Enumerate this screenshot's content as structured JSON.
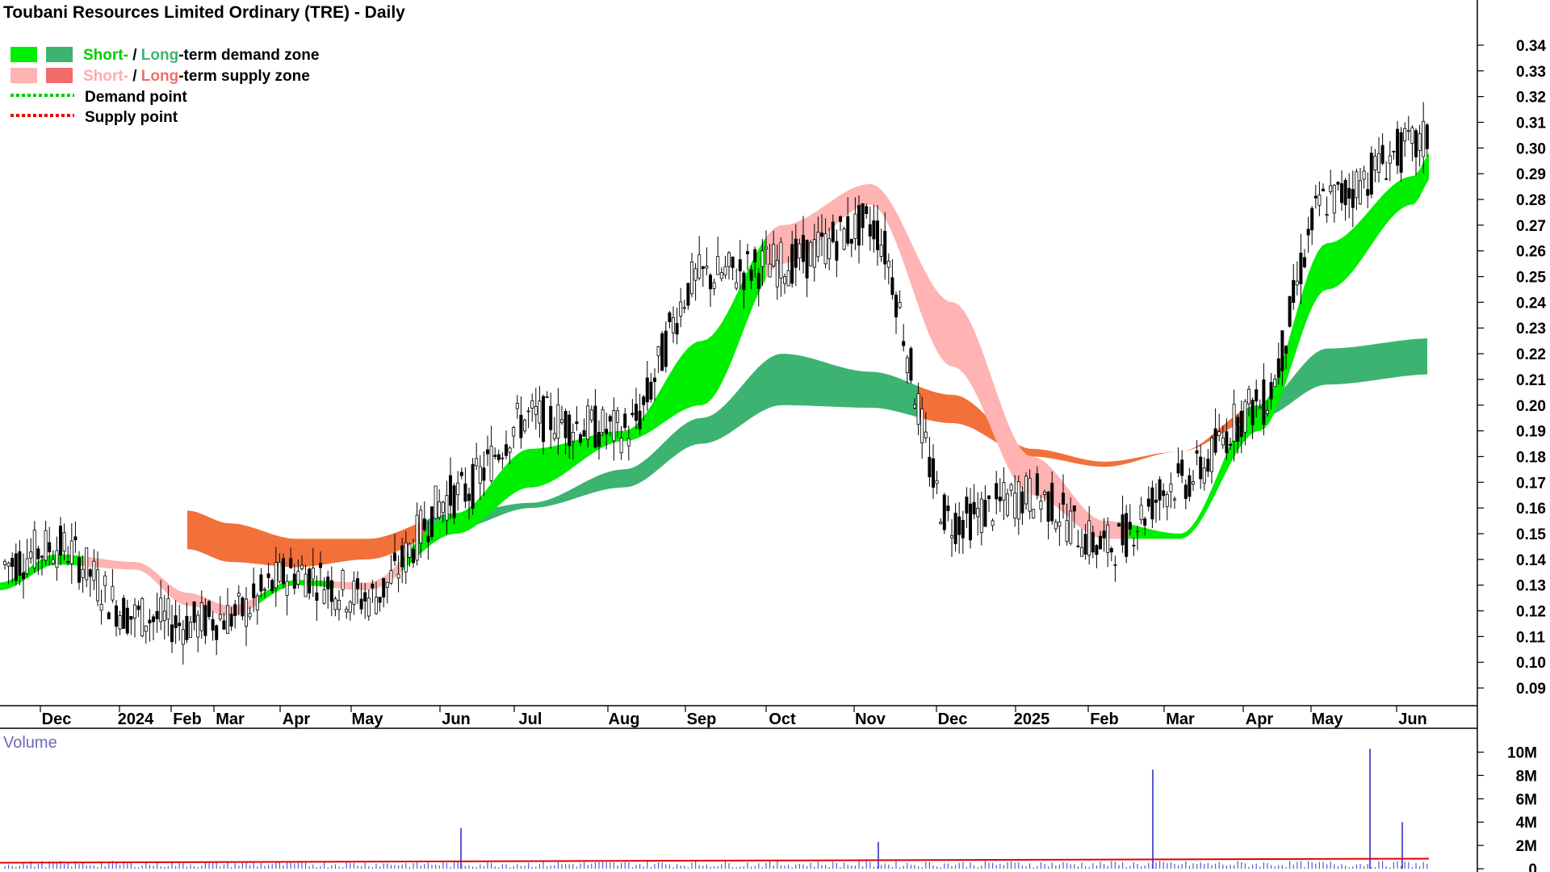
{
  "title": "Toubani Resources Limited Ordinary (TRE) - Daily",
  "colors": {
    "short_demand": "#00ee00",
    "long_demand": "#3cb371",
    "short_supply": "#ffb3b3",
    "long_supply": "#f2713a",
    "demand_point": "#00cc00",
    "supply_point": "#ee0000",
    "volume_bar": "#5a5ad0",
    "volume_avg": "#e00000"
  },
  "legend": {
    "demand_short": "Short-",
    "demand_sep": " / ",
    "demand_long": "Long",
    "demand_rest": "-term demand zone",
    "supply_short": "Short-",
    "supply_sep": " / ",
    "supply_long": "Long",
    "supply_rest": "-term supply zone",
    "demand_point": "Demand point",
    "supply_point": "Supply point"
  },
  "volume_label": "Volume",
  "chart_data": [
    {
      "type": "candlestick",
      "title": "Toubani Resources Limited Ordinary (TRE) - Daily",
      "x_tick_labels": [
        "Dec",
        "2024",
        "Feb",
        "Mar",
        "Apr",
        "May",
        "Jun",
        "Jul",
        "Aug",
        "Sep",
        "Oct",
        "Nov",
        "Dec",
        "2025",
        "Feb",
        "Mar",
        "Apr",
        "May",
        "Jun"
      ],
      "y_tick_labels": [
        "0.34",
        "0.33",
        "0.32",
        "0.31",
        "0.30",
        "0.29",
        "0.28",
        "0.27",
        "0.26",
        "0.25",
        "0.24",
        "0.23",
        "0.22",
        "0.21",
        "0.20",
        "0.19",
        "0.18",
        "0.17",
        "0.16",
        "0.15",
        "0.14",
        "0.13",
        "0.12",
        "0.11",
        "0.10",
        "0.09"
      ],
      "ylim": [
        0.085,
        0.345
      ],
      "grid": false,
      "legend_position": "top-left",
      "price_path": [
        [
          "Dec",
          0.145
        ],
        [
          "2024",
          0.118
        ],
        [
          "Feb",
          0.115
        ],
        [
          "Mar",
          0.118
        ],
        [
          "Apr",
          0.135
        ],
        [
          "May",
          0.125
        ],
        [
          "Jun",
          0.165
        ],
        [
          "Jul",
          0.195
        ],
        [
          "Aug",
          0.19
        ],
        [
          "Sep",
          0.25
        ],
        [
          "Oct",
          0.255
        ],
        [
          "Nov",
          0.27
        ],
        [
          "Dec",
          0.155
        ],
        [
          "2025",
          0.165
        ],
        [
          "Feb",
          0.145
        ],
        [
          "Mar",
          0.17
        ],
        [
          "Apr",
          0.2
        ],
        [
          "May",
          0.28
        ],
        [
          "Jun",
          0.3
        ]
      ],
      "short_term_zone": [
        [
          "Dec",
          0.138,
          0.142
        ],
        [
          "2024",
          0.136,
          0.139
        ],
        [
          "Feb",
          0.122,
          0.127
        ],
        [
          "Mar",
          0.118,
          0.122
        ],
        [
          "Apr",
          0.13,
          0.132
        ],
        [
          "May",
          0.128,
          0.131
        ],
        [
          "Jun",
          0.15,
          0.158
        ],
        [
          "Jul",
          0.168,
          0.183
        ],
        [
          "Aug",
          0.186,
          0.19
        ],
        [
          "Sep",
          0.2,
          0.225
        ],
        [
          "Oct",
          0.255,
          0.27
        ],
        [
          "Nov",
          0.278,
          0.286
        ],
        [
          "Dec",
          0.215,
          0.24
        ],
        [
          "2025",
          0.165,
          0.18
        ],
        [
          "Feb",
          0.148,
          0.155
        ],
        [
          "Mar",
          0.148,
          0.15
        ],
        [
          "Apr",
          0.19,
          0.2
        ],
        [
          "May",
          0.245,
          0.263
        ],
        [
          "Jun",
          0.278,
          0.289
        ]
      ],
      "long_term_zone": [
        [
          "Feb",
          0.144,
          0.159
        ],
        [
          "Apr",
          0.139,
          0.154
        ],
        [
          "May",
          0.137,
          0.148
        ],
        [
          "Jun",
          0.14,
          0.148
        ],
        [
          "Jul",
          0.152,
          0.158
        ],
        [
          "Aug",
          0.16,
          0.162
        ],
        [
          "Sep",
          0.168,
          0.175
        ],
        [
          "Oct",
          0.185,
          0.195
        ],
        [
          "Nov",
          0.2,
          0.22
        ],
        [
          "Dec",
          0.199,
          0.213
        ],
        [
          "2025",
          0.193,
          0.204
        ],
        [
          "Feb",
          0.18,
          0.183
        ],
        [
          "Mar",
          0.176,
          0.178
        ],
        [
          "Apr",
          0.182,
          0.182
        ],
        [
          "May",
          0.195,
          0.2
        ],
        [
          "Jun",
          0.208,
          0.222
        ]
      ],
      "volume_axis_labels": [
        "10M",
        "8M",
        "6M",
        "4M",
        "2M",
        "0"
      ],
      "volume_ylim": [
        0,
        10.8
      ],
      "volume_spikes_M": [
        [
          "Jun",
          3.5
        ],
        [
          "Nov",
          2.3
        ],
        [
          "Mar",
          8.5
        ],
        [
          "May",
          10.3
        ],
        [
          "Jun",
          4.0
        ]
      ],
      "volume_baseline_M": 0.4,
      "volume_average_M": 0.8
    }
  ]
}
